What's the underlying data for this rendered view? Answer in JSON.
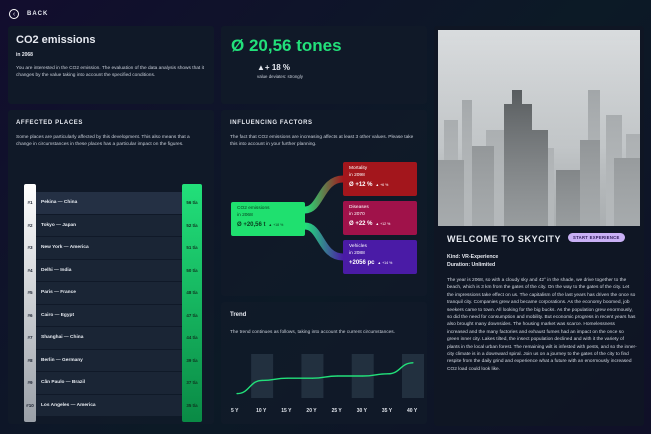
{
  "back_label": "BACK",
  "summary": {
    "title": "CO2 emissions",
    "year": "in 2068",
    "description": "You are interested in the CO2 emission. The evaluation of the data analysis shows that it changes by the value taking into account the specified conditions."
  },
  "stat": {
    "value": "Ø 20,56 tones",
    "change": "▲+ 18 %",
    "note": "value deviates: strongly"
  },
  "affected": {
    "title": "AFFECTED PLACES",
    "description": "Some places are particularly affected by this development. This also means that a change in circumstances in these places has a particular impact on the figures.",
    "rows": [
      {
        "rank": "#1",
        "city": "Pekina — China",
        "value": "56 t/a"
      },
      {
        "rank": "#2",
        "city": "Tokyo — Japan",
        "value": "52 t/a"
      },
      {
        "rank": "#3",
        "city": "New York — America",
        "value": "51 t/a"
      },
      {
        "rank": "#4",
        "city": "Delhi — India",
        "value": "50 t/a"
      },
      {
        "rank": "#5",
        "city": "Paris — France",
        "value": "48 t/a"
      },
      {
        "rank": "#6",
        "city": "Cairo — Egypt",
        "value": "47 t/a"
      },
      {
        "rank": "#7",
        "city": "Shanghai — China",
        "value": "44 t/a"
      },
      {
        "rank": "#8",
        "city": "Berlin — Germany",
        "value": "39 t/a"
      },
      {
        "rank": "#9",
        "city": "Cãn Paulo — Brazil",
        "value": "37 t/a"
      },
      {
        "rank": "#10",
        "city": "Los Angeles — America",
        "value": "35 t/a"
      }
    ]
  },
  "factors": {
    "title": "INFLUENCING FACTORS",
    "description": "The fact that CO2 emissions are increasing affects at least 3 other values. Please take this into account in your further planning.",
    "source": {
      "label": "CO2 emissions",
      "year": "in 2068",
      "value": "Ø +20,56 t",
      "delta": "▲ +18 %"
    },
    "items": [
      {
        "label": "Mortality",
        "year": "in 2098",
        "value": "Ø +12 %",
        "delta": "▲ +6 %",
        "color": "#a3161c"
      },
      {
        "label": "Diseases",
        "year": "in 2070",
        "value": "Ø +22 %",
        "delta": "▲ +12 %",
        "color": "#a0124a"
      },
      {
        "label": "Vehicles",
        "year": "in 2088",
        "value": "+2056 pc",
        "delta": "▲ +14 %",
        "color": "#4a1ba6"
      }
    ]
  },
  "trend": {
    "title": "Trend",
    "description": "The trend continues as follows, taking into account the current circumstances."
  },
  "chart_data": {
    "type": "line",
    "x": [
      "5 Y",
      "10 Y",
      "15 Y",
      "20 Y",
      "25 Y",
      "30 Y",
      "35 Y",
      "40 Y"
    ],
    "series": [
      {
        "values": [
          2,
          8,
          9,
          9,
          10,
          10,
          11,
          16
        ]
      }
    ],
    "ylim": [
      0,
      20
    ]
  },
  "city": {
    "title": "WELCOME TO SKYCITY",
    "button": "START EXPERIENCE",
    "kind": "Kind: VR-Experience",
    "duration": "Duration: Unlimited",
    "story": "The year is 2068, so with a cloudy sky and 42° in the shade, we drive together to the beach, which is 3 km from the gates of the city. On the way to the gates of the city. Let the impressions take effect on us. The capitalism of the last years has driven the once so tranquil city. Companies grew and became corporations. As the economy boomed, job seekers came to town. All looking for the big bucks. As the population grew enormously, so did the need for consumption and mobility. But economic progress in recent years has also brought many downsides. The housing market was scarce. Homelessness increased and the many factories and exhaust fumes had an impact on the once so green inner city. Lakes tilted, the insect population declined and with it the variety of plants in the local urban forest. The remaining wilt is infested with pests, and so the inner-city climate is in a downward spiral. Join us on a journey to the gates of the city to find respite from the daily grind and experience what a future with an enormously increased CO2 load could look like."
  },
  "colors": {
    "accent": "#22e07a",
    "tag": "#c9b0f5"
  }
}
